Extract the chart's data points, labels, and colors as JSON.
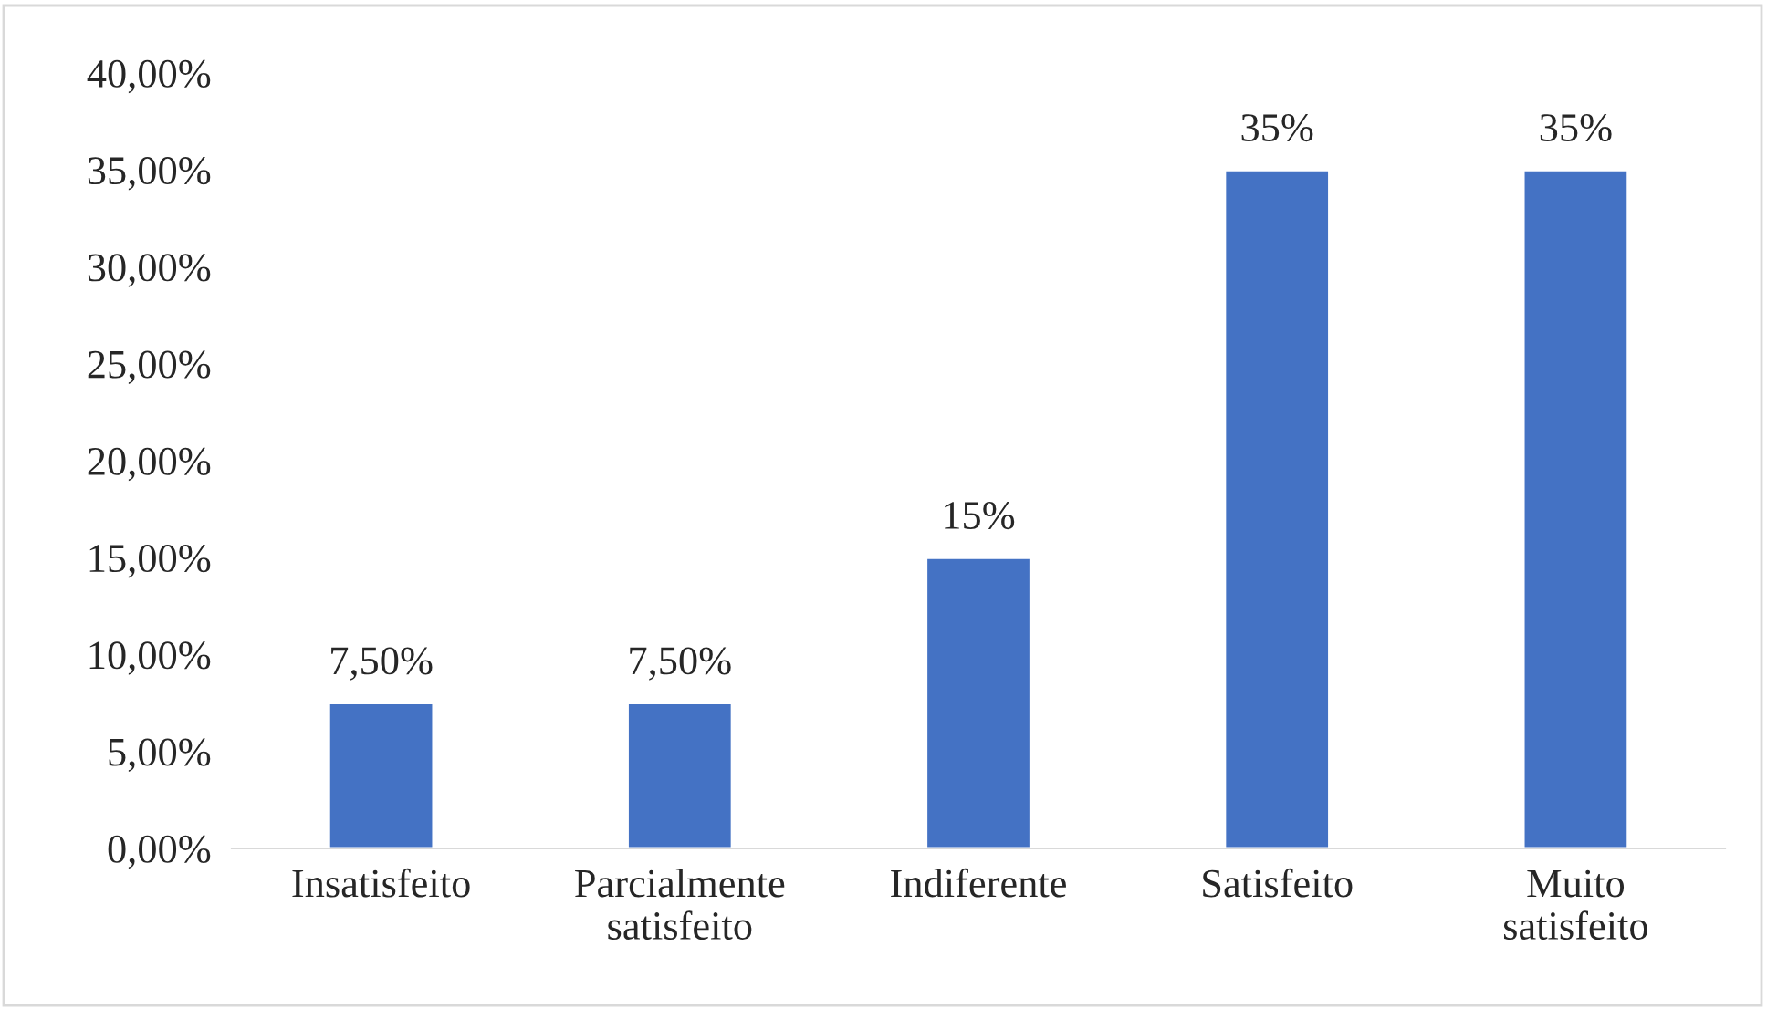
{
  "chart_data": {
    "type": "bar",
    "categories": [
      "Insatisfeito",
      "Parcialmente\nsatisfeito",
      "Indiferente",
      "Satisfeito",
      "Muito\nsatisfeito"
    ],
    "values": [
      7.5,
      7.5,
      15,
      35,
      35
    ],
    "value_labels": [
      "7,50%",
      "7,50%",
      "15%",
      "35%",
      "35%"
    ],
    "color": "#4472c4",
    "ylim": [
      0,
      40
    ],
    "yticks": [
      {
        "value": 0,
        "label": "0,00%"
      },
      {
        "value": 5,
        "label": "5,00%"
      },
      {
        "value": 10,
        "label": "10,00%"
      },
      {
        "value": 15,
        "label": "15,00%"
      },
      {
        "value": 20,
        "label": "20,00%"
      },
      {
        "value": 25,
        "label": "25,00%"
      },
      {
        "value": 30,
        "label": "30,00%"
      },
      {
        "value": 35,
        "label": "35,00%"
      },
      {
        "value": 40,
        "label": "40,00%"
      }
    ],
    "grid": false,
    "legend": false
  }
}
